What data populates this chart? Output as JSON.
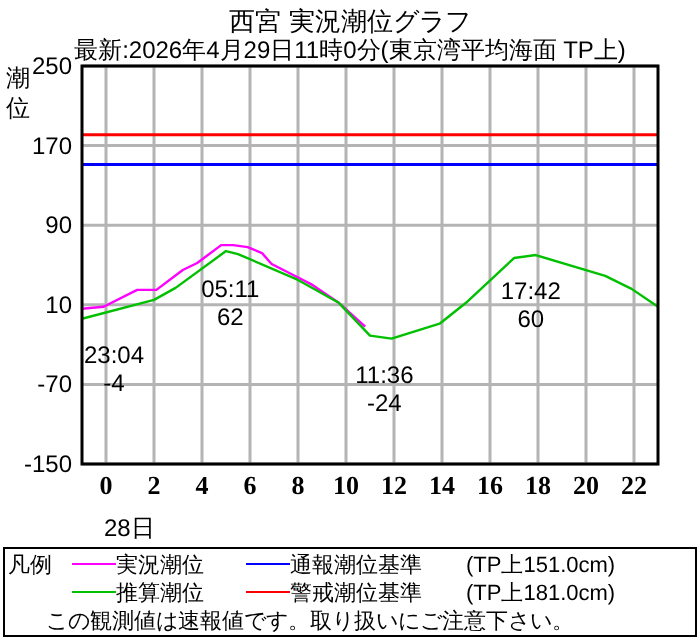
{
  "chart_data": {
    "type": "line",
    "title": "西宮 実況潮位グラフ",
    "subtitle": "最新:2026年4月29日11時0分(東京湾平均海面 TP上)",
    "ylabel": "潮位",
    "legend_title": "凡例",
    "xlim": [
      -1,
      23
    ],
    "xticks": [
      0,
      2,
      4,
      6,
      8,
      10,
      12,
      14,
      16,
      18,
      20,
      22
    ],
    "ylim": [
      -150,
      250
    ],
    "yticks": [
      -150,
      -70,
      10,
      90,
      170,
      250
    ],
    "grid": true,
    "legend": "bottom",
    "series": [
      {
        "name": "実況潮位",
        "color": "#ff00ff",
        "x": [
          -1,
          -0.1,
          1.3,
          2.1,
          3.2,
          3.8,
          4.8,
          5.3,
          5.9,
          6.5,
          6.9,
          7.8,
          8.6,
          9.7,
          10.8
        ],
        "values": [
          6,
          8,
          25,
          25,
          45,
          52,
          70,
          70,
          68,
          62,
          51,
          40,
          30,
          12,
          -12
        ]
      },
      {
        "name": "推算潮位",
        "color": "#00c000",
        "x": [
          -1,
          2,
          2.9,
          5,
          5.5,
          8,
          9.7,
          11,
          11.9,
          13.9,
          15,
          17,
          17.9,
          20.8,
          21.9,
          23
        ],
        "values": [
          -4,
          15,
          27,
          64,
          61,
          35,
          12,
          -21,
          -24,
          -9,
          12,
          57,
          60,
          39,
          26,
          8
        ]
      }
    ],
    "ref_lines": [
      {
        "axis": "y",
        "value": 151,
        "label": "通報潮位基準　　(TP上151.0cm)",
        "color": "#0000ff"
      },
      {
        "axis": "y",
        "value": 181,
        "label": "警戒潮位基準　　(TP上181.0cm)",
        "color": "#ff0000"
      }
    ],
    "annotations": [
      {
        "text": "23:04\n-4",
        "x": -1,
        "y": -4
      },
      {
        "text": "05:11\n62",
        "x": 5.18,
        "y": 62
      },
      {
        "text": "11:36\n-24",
        "x": 11.6,
        "y": -24
      },
      {
        "text": "17:42\n60",
        "x": 17.7,
        "y": 60
      },
      "28日",
      "この観測値は速報値です。取り扱いにご注意下さい。"
    ]
  }
}
